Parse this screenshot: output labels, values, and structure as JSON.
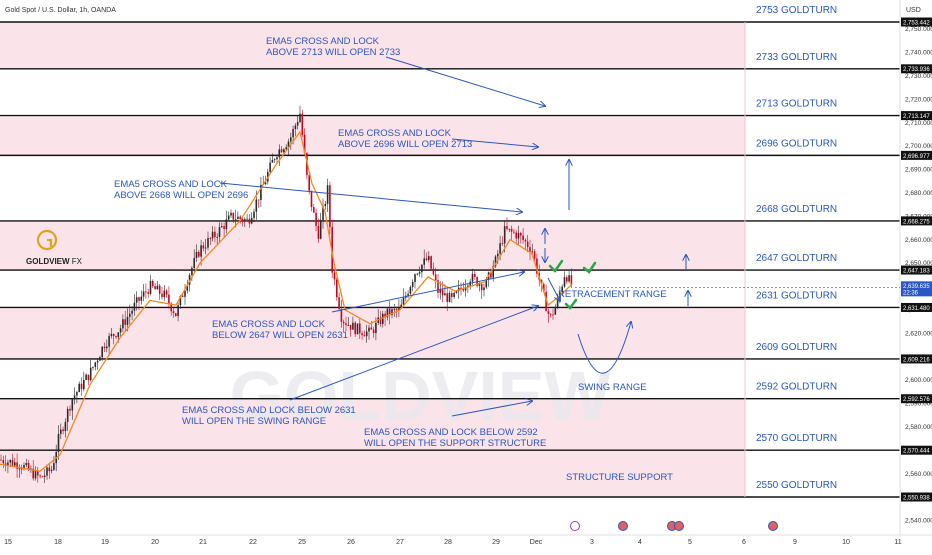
{
  "header": {
    "symbol": "Gold Spot / U.S. Dollar, 1h, OANDA",
    "currency": "USD"
  },
  "logo": {
    "text": "GOLDVIEW",
    "suffix": "FX",
    "watermark": "GOLDVIEW"
  },
  "chart_data": {
    "type": "line",
    "ylim": [
      2536,
      2756
    ],
    "x_ticks": [
      "15",
      "18",
      "19",
      "20",
      "21",
      "22",
      "25",
      "26",
      "27",
      "28",
      "29",
      "Dec",
      "3",
      "4",
      "5",
      "6",
      "9",
      "10",
      "11"
    ],
    "y_ticks": [
      "2,750.000",
      "2,740.000",
      "2,730.000",
      "2,720.000",
      "2,710.000",
      "2,700.000",
      "2,690.000",
      "2,680.000",
      "2,670.000",
      "2,660.000",
      "2,650.000",
      "2,640.000",
      "2,630.000",
      "2,620.000",
      "2,610.000",
      "2,600.000",
      "2,590.000",
      "2,580.000",
      "2,570.000",
      "2,560.000",
      "2,550.000",
      "2,540.000"
    ],
    "levels": [
      {
        "price": 2753,
        "tag": "2,753.442",
        "label": "2753 GOLDTURN"
      },
      {
        "price": 2733,
        "tag": "2,733.936",
        "label": "2733 GOLDTURN"
      },
      {
        "price": 2713,
        "tag": "2,713.147",
        "label": "2713 GOLDTURN"
      },
      {
        "price": 2696,
        "tag": "2,696.977",
        "label": "2696 GOLDTURN"
      },
      {
        "price": 2668,
        "tag": "2,668.275",
        "label": "2668 GOLDTURN"
      },
      {
        "price": 2647,
        "tag": "2,647.183",
        "label": "2647 GOLDTURN"
      },
      {
        "price": 2631,
        "tag": "2,631.480",
        "label": "2631 GOLDTURN"
      },
      {
        "price": 2609,
        "tag": "2,609.216",
        "label": "2609 GOLDTURN"
      },
      {
        "price": 2592,
        "tag": "2,592.576",
        "label": "2592 GOLDTURN"
      },
      {
        "price": 2570,
        "tag": "2,570.444",
        "label": "2570 GOLDTURN"
      },
      {
        "price": 2550,
        "tag": "2,550.938",
        "label": "2550 GOLDTURN"
      }
    ],
    "current_price": {
      "value": 2639.6,
      "tag": "2,639.635",
      "countdown": "22:36"
    },
    "price_path": [
      [
        0,
        2566
      ],
      [
        20,
        2564
      ],
      [
        40,
        2558
      ],
      [
        52,
        2562
      ],
      [
        58,
        2574
      ],
      [
        72,
        2592
      ],
      [
        90,
        2603
      ],
      [
        105,
        2616
      ],
      [
        120,
        2622
      ],
      [
        135,
        2632
      ],
      [
        150,
        2640
      ],
      [
        165,
        2636
      ],
      [
        176,
        2628
      ],
      [
        188,
        2644
      ],
      [
        200,
        2656
      ],
      [
        215,
        2662
      ],
      [
        232,
        2670
      ],
      [
        248,
        2668
      ],
      [
        262,
        2682
      ],
      [
        276,
        2697
      ],
      [
        290,
        2703
      ],
      [
        300,
        2714
      ],
      [
        308,
        2682
      ],
      [
        318,
        2662
      ],
      [
        328,
        2682
      ],
      [
        332,
        2648
      ],
      [
        342,
        2626
      ],
      [
        355,
        2622
      ],
      [
        370,
        2620
      ],
      [
        385,
        2628
      ],
      [
        400,
        2630
      ],
      [
        415,
        2646
      ],
      [
        428,
        2652
      ],
      [
        438,
        2638
      ],
      [
        452,
        2634
      ],
      [
        470,
        2644
      ],
      [
        485,
        2640
      ],
      [
        495,
        2650
      ],
      [
        505,
        2664
      ],
      [
        518,
        2662
      ],
      [
        532,
        2656
      ],
      [
        542,
        2638
      ],
      [
        550,
        2626
      ],
      [
        558,
        2634
      ],
      [
        565,
        2646
      ],
      [
        572,
        2640
      ]
    ],
    "ema_path": [
      [
        0,
        2564
      ],
      [
        40,
        2561
      ],
      [
        60,
        2568
      ],
      [
        90,
        2598
      ],
      [
        120,
        2618
      ],
      [
        150,
        2634
      ],
      [
        176,
        2632
      ],
      [
        200,
        2650
      ],
      [
        240,
        2668
      ],
      [
        276,
        2692
      ],
      [
        300,
        2706
      ],
      [
        312,
        2684
      ],
      [
        325,
        2672
      ],
      [
        334,
        2650
      ],
      [
        345,
        2630
      ],
      [
        370,
        2624
      ],
      [
        400,
        2630
      ],
      [
        428,
        2644
      ],
      [
        455,
        2638
      ],
      [
        485,
        2642
      ],
      [
        510,
        2660
      ],
      [
        532,
        2654
      ],
      [
        548,
        2632
      ],
      [
        560,
        2636
      ],
      [
        572,
        2641
      ]
    ]
  },
  "annotations": {
    "a1": [
      "EMA5 CROSS AND LOCK",
      "ABOVE 2713 WILL OPEN 2733"
    ],
    "a2": [
      "EMA5 CROSS AND LOCK",
      "ABOVE 2696 WILL OPEN 2713"
    ],
    "a3": [
      "EMA5 CROSS AND LOCK",
      "ABOVE 2668 WILL OPEN 2696"
    ],
    "a4": [
      "EMA5 CROSS AND LOCK",
      "BELOW 2647 WILL OPEN 2631"
    ],
    "a5": [
      "EMA5 CROSS AND LOCK BELOW 2631",
      "WILL OPEN THE SWING RANGE"
    ],
    "a6": [
      "EMA5 CROSS AND LOCK BELOW 2592",
      "WILL OPEN THE SUPPORT STRUCTURE"
    ],
    "retracement": "RETRACEMENT RANGE",
    "swing": "SWING RANGE",
    "structure": "STRUCTURE SUPPORT"
  },
  "colors": {
    "band": "#fbe3ea",
    "blue": "#2a56c6",
    "candle_up": "#2a2a2a",
    "candle_down": "#d0021b",
    "ema": "#f5871f",
    "check": "#27a844"
  }
}
